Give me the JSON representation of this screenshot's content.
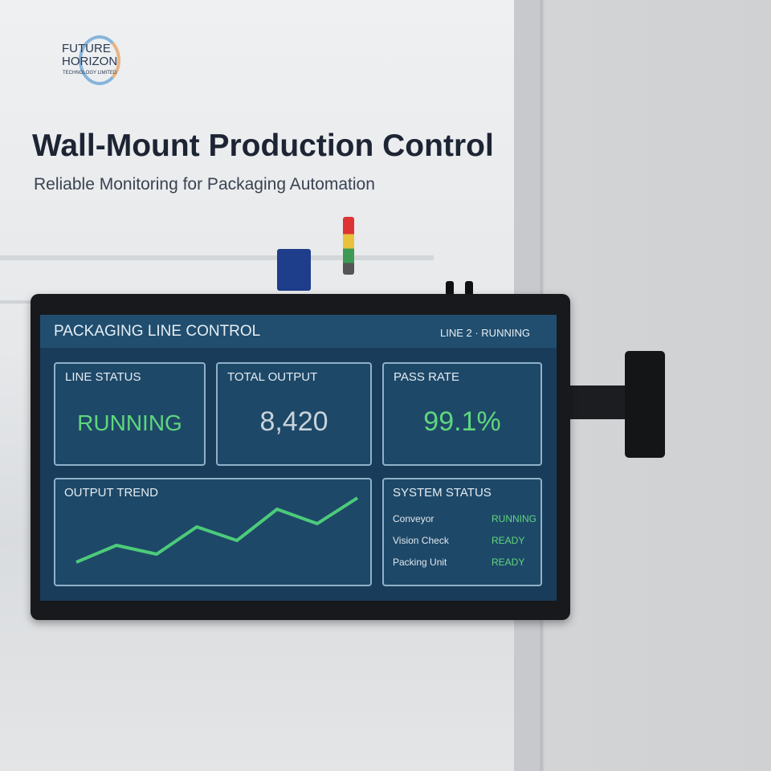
{
  "logo": {
    "line1": "FUTURE",
    "line2": "HORIZON",
    "line3": "TECHNOLOGY LIMITED"
  },
  "headline": {
    "title": "Wall-Mount Production Control",
    "subtitle": "Reliable Monitoring for Packaging Automation"
  },
  "screen": {
    "title": "PACKAGING LINE CONTROL",
    "status": "LINE 2 · RUNNING",
    "cards": [
      {
        "label": "LINE STATUS",
        "value": "RUNNING",
        "color": "#5fd67e"
      },
      {
        "label": "TOTAL OUTPUT",
        "value": "8,420",
        "color": "#c9d3da"
      },
      {
        "label": "PASS RATE",
        "value": "99.1%",
        "color": "#5fd67e"
      }
    ],
    "trend": {
      "type": "line",
      "label": "OUTPUT TREND",
      "values": [
        20,
        41,
        30,
        64,
        47,
        86,
        68,
        100
      ],
      "ylim": [
        20,
        100
      ],
      "color": "#4ccb7a"
    },
    "system": {
      "label": "SYSTEM STATUS",
      "rows": [
        [
          "Conveyor",
          "RUNNING"
        ],
        [
          "Vision Check",
          "READY"
        ],
        [
          "Packing Unit",
          "READY"
        ]
      ]
    }
  }
}
